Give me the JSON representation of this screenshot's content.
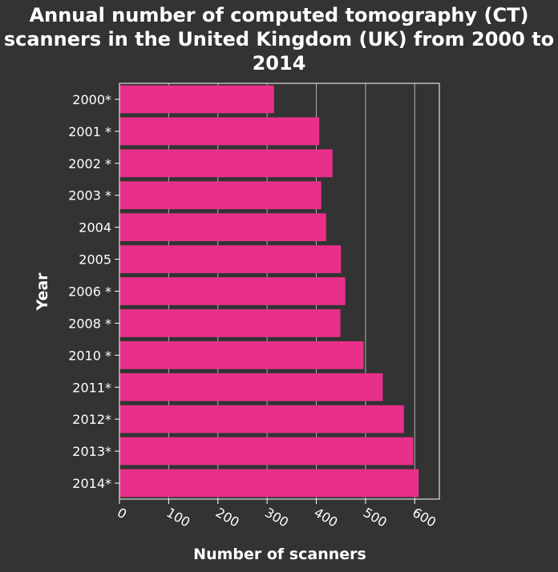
{
  "chart_data": {
    "type": "bar",
    "orientation": "horizontal",
    "title": "Annual number of computed tomography (CT) scanners in the United Kingdom (UK) from 2000 to 2014",
    "xlabel": "Number of scanners",
    "ylabel": "Year",
    "categories": [
      "2000*",
      "2001 *",
      "2002 *",
      "2003 *",
      "2004",
      "2005",
      "2006 *",
      "2008 *",
      "2010 *",
      "2011*",
      "2012*",
      "2013*",
      "2014*"
    ],
    "values": [
      314,
      406,
      433,
      410,
      420,
      450,
      459,
      449,
      496,
      535,
      578,
      597,
      608
    ],
    "xlim": [
      0,
      650
    ],
    "xticks": [
      0,
      100,
      200,
      300,
      400,
      500,
      600
    ],
    "grid": "vertical",
    "bar_color": "#e8308a",
    "background": "#333333",
    "text_color": "#ffffff",
    "grid_color": "#b0b0b0"
  }
}
